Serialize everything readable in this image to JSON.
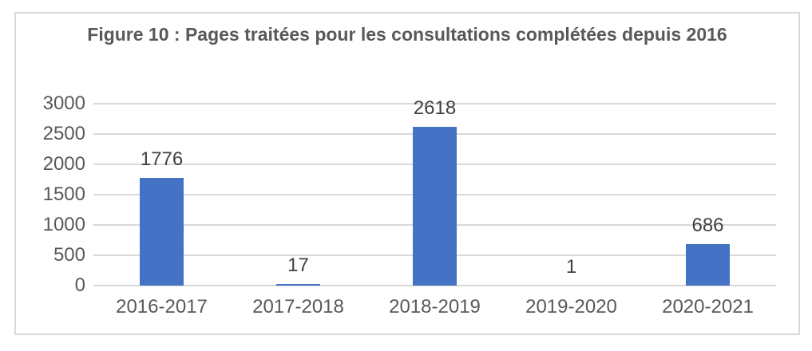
{
  "figure": {
    "title": "Figure 10 : Pages traitées pour les consultations complétées depuis 2016"
  },
  "chart_data": {
    "type": "bar",
    "title": "Figure 10 : Pages traitées pour les consultations complétées depuis 2016",
    "categories": [
      "2016-2017",
      "2017-2018",
      "2018-2019",
      "2019-2020",
      "2020-2021"
    ],
    "values": [
      1776,
      17,
      2618,
      1,
      686
    ],
    "data_labels": [
      "1776",
      "17",
      "2618",
      "1",
      "686"
    ],
    "xlabel": "",
    "ylabel": "",
    "ylim": [
      0,
      3000
    ],
    "yticks": [
      0,
      500,
      1000,
      1500,
      2000,
      2500,
      3000
    ],
    "grid": true,
    "legend": "none",
    "colors": {
      "bar": "#4472C4",
      "gridline": "#D9D9D9",
      "axis_line": "#D9D9D9",
      "axis_text": "#595959",
      "data_label_text": "#404040",
      "title_text": "#595959",
      "frame_border": "#D9D9D9",
      "background": "#FFFFFF"
    }
  }
}
